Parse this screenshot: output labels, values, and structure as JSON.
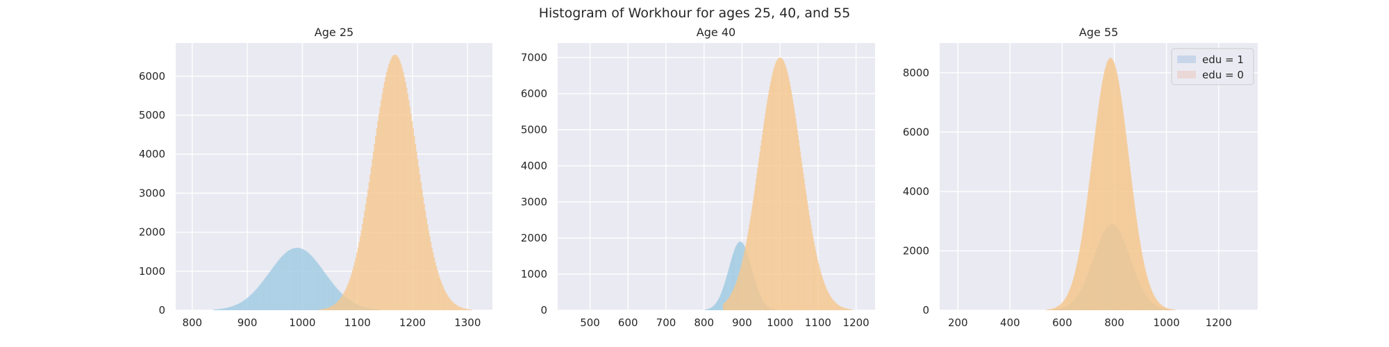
{
  "title": "Histogram of Workhour for ages 25, 40, and 55",
  "colors": {
    "background": "#eaeaf2",
    "grid": "#ffffff",
    "edu1": "#9ecae1",
    "edu0": "#f5c78e",
    "overlap": "#b8b68e"
  },
  "chart_data": [
    {
      "type": "histogram",
      "title": "Age 25",
      "xlim": [
        770,
        1345
      ],
      "ylim": [
        0,
        6850
      ],
      "xticks": [
        800,
        900,
        1000,
        1100,
        1200,
        1300
      ],
      "yticks": [
        0,
        1000,
        2000,
        3000,
        4000,
        5000,
        6000
      ],
      "grid": true,
      "series": [
        {
          "name": "edu = 1",
          "color": "#9ecae1",
          "distribution": "normal",
          "mean": 990,
          "std": 50,
          "peak": 1600,
          "range": [
            800,
            1150
          ]
        },
        {
          "name": "edu = 0",
          "color": "#f5c78e",
          "distribution": "normal",
          "mean": 1168,
          "std": 40,
          "peak": 6550,
          "range": [
            1030,
            1310
          ]
        }
      ]
    },
    {
      "type": "histogram",
      "title": "Age 40",
      "xlim": [
        415,
        1250
      ],
      "ylim": [
        0,
        7400
      ],
      "xticks": [
        500,
        600,
        700,
        800,
        900,
        1000,
        1100,
        1200
      ],
      "yticks": [
        0,
        1000,
        2000,
        3000,
        4000,
        5000,
        6000,
        7000
      ],
      "grid": true,
      "series": [
        {
          "name": "edu = 1",
          "color": "#9ecae1",
          "distribution": "normal",
          "mean": 895,
          "std": 30,
          "peak": 1900,
          "range": [
            700,
            1200
          ]
        },
        {
          "name": "edu = 0",
          "color": "#f5c78e",
          "distribution": "normal",
          "mean": 1000,
          "std": 55,
          "peak": 7000,
          "range": [
            850,
            1190
          ]
        }
      ]
    },
    {
      "type": "histogram",
      "title": "Age 55",
      "xlim": [
        130,
        1350
      ],
      "ylim": [
        0,
        9000
      ],
      "xticks": [
        200,
        400,
        600,
        800,
        1000,
        1200
      ],
      "yticks": [
        0,
        2000,
        4000,
        6000,
        8000
      ],
      "grid": true,
      "legend": {
        "placement": "top-right",
        "entries": [
          "edu = 1",
          "edu = 0"
        ]
      },
      "series": [
        {
          "name": "edu = 1",
          "color": "#9ecae1",
          "distribution": "normal",
          "mean": 790,
          "std": 70,
          "peak": 2900,
          "range": [
            520,
            1050
          ]
        },
        {
          "name": "edu = 0",
          "color": "#f5c78e",
          "distribution": "normal",
          "mean": 785,
          "std": 70,
          "peak": 8500,
          "range": [
            520,
            1060
          ]
        }
      ]
    }
  ]
}
